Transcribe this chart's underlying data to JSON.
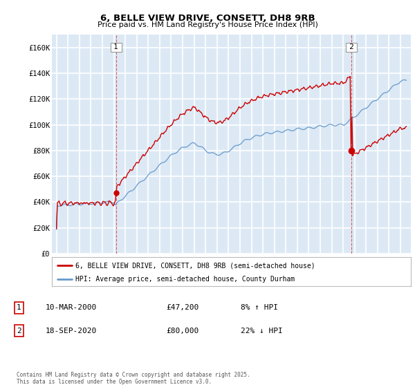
{
  "title1": "6, BELLE VIEW DRIVE, CONSETT, DH8 9RB",
  "title2": "Price paid vs. HM Land Registry's House Price Index (HPI)",
  "legend_line1": "6, BELLE VIEW DRIVE, CONSETT, DH8 9RB (semi-detached house)",
  "legend_line2": "HPI: Average price, semi-detached house, County Durham",
  "annotation1_label": "1",
  "annotation1_date": "10-MAR-2000",
  "annotation1_price": "£47,200",
  "annotation1_hpi": "8% ↑ HPI",
  "annotation2_label": "2",
  "annotation2_date": "18-SEP-2020",
  "annotation2_price": "£80,000",
  "annotation2_hpi": "22% ↓ HPI",
  "copyright": "Contains HM Land Registry data © Crown copyright and database right 2025.\nThis data is licensed under the Open Government Licence v3.0.",
  "red_color": "#cc0000",
  "blue_color": "#6699cc",
  "background_color": "#dce9f5",
  "grid_color": "#ffffff",
  "ylim": [
    0,
    170000
  ],
  "yticks": [
    0,
    20000,
    40000,
    60000,
    80000,
    100000,
    120000,
    140000,
    160000
  ],
  "ytick_labels": [
    "£0",
    "£20K",
    "£40K",
    "£60K",
    "£80K",
    "£100K",
    "£120K",
    "£140K",
    "£160K"
  ],
  "purchase1_year": 2000.19,
  "purchase1_price": 47200,
  "purchase2_year": 2020.72,
  "purchase2_price": 80000
}
